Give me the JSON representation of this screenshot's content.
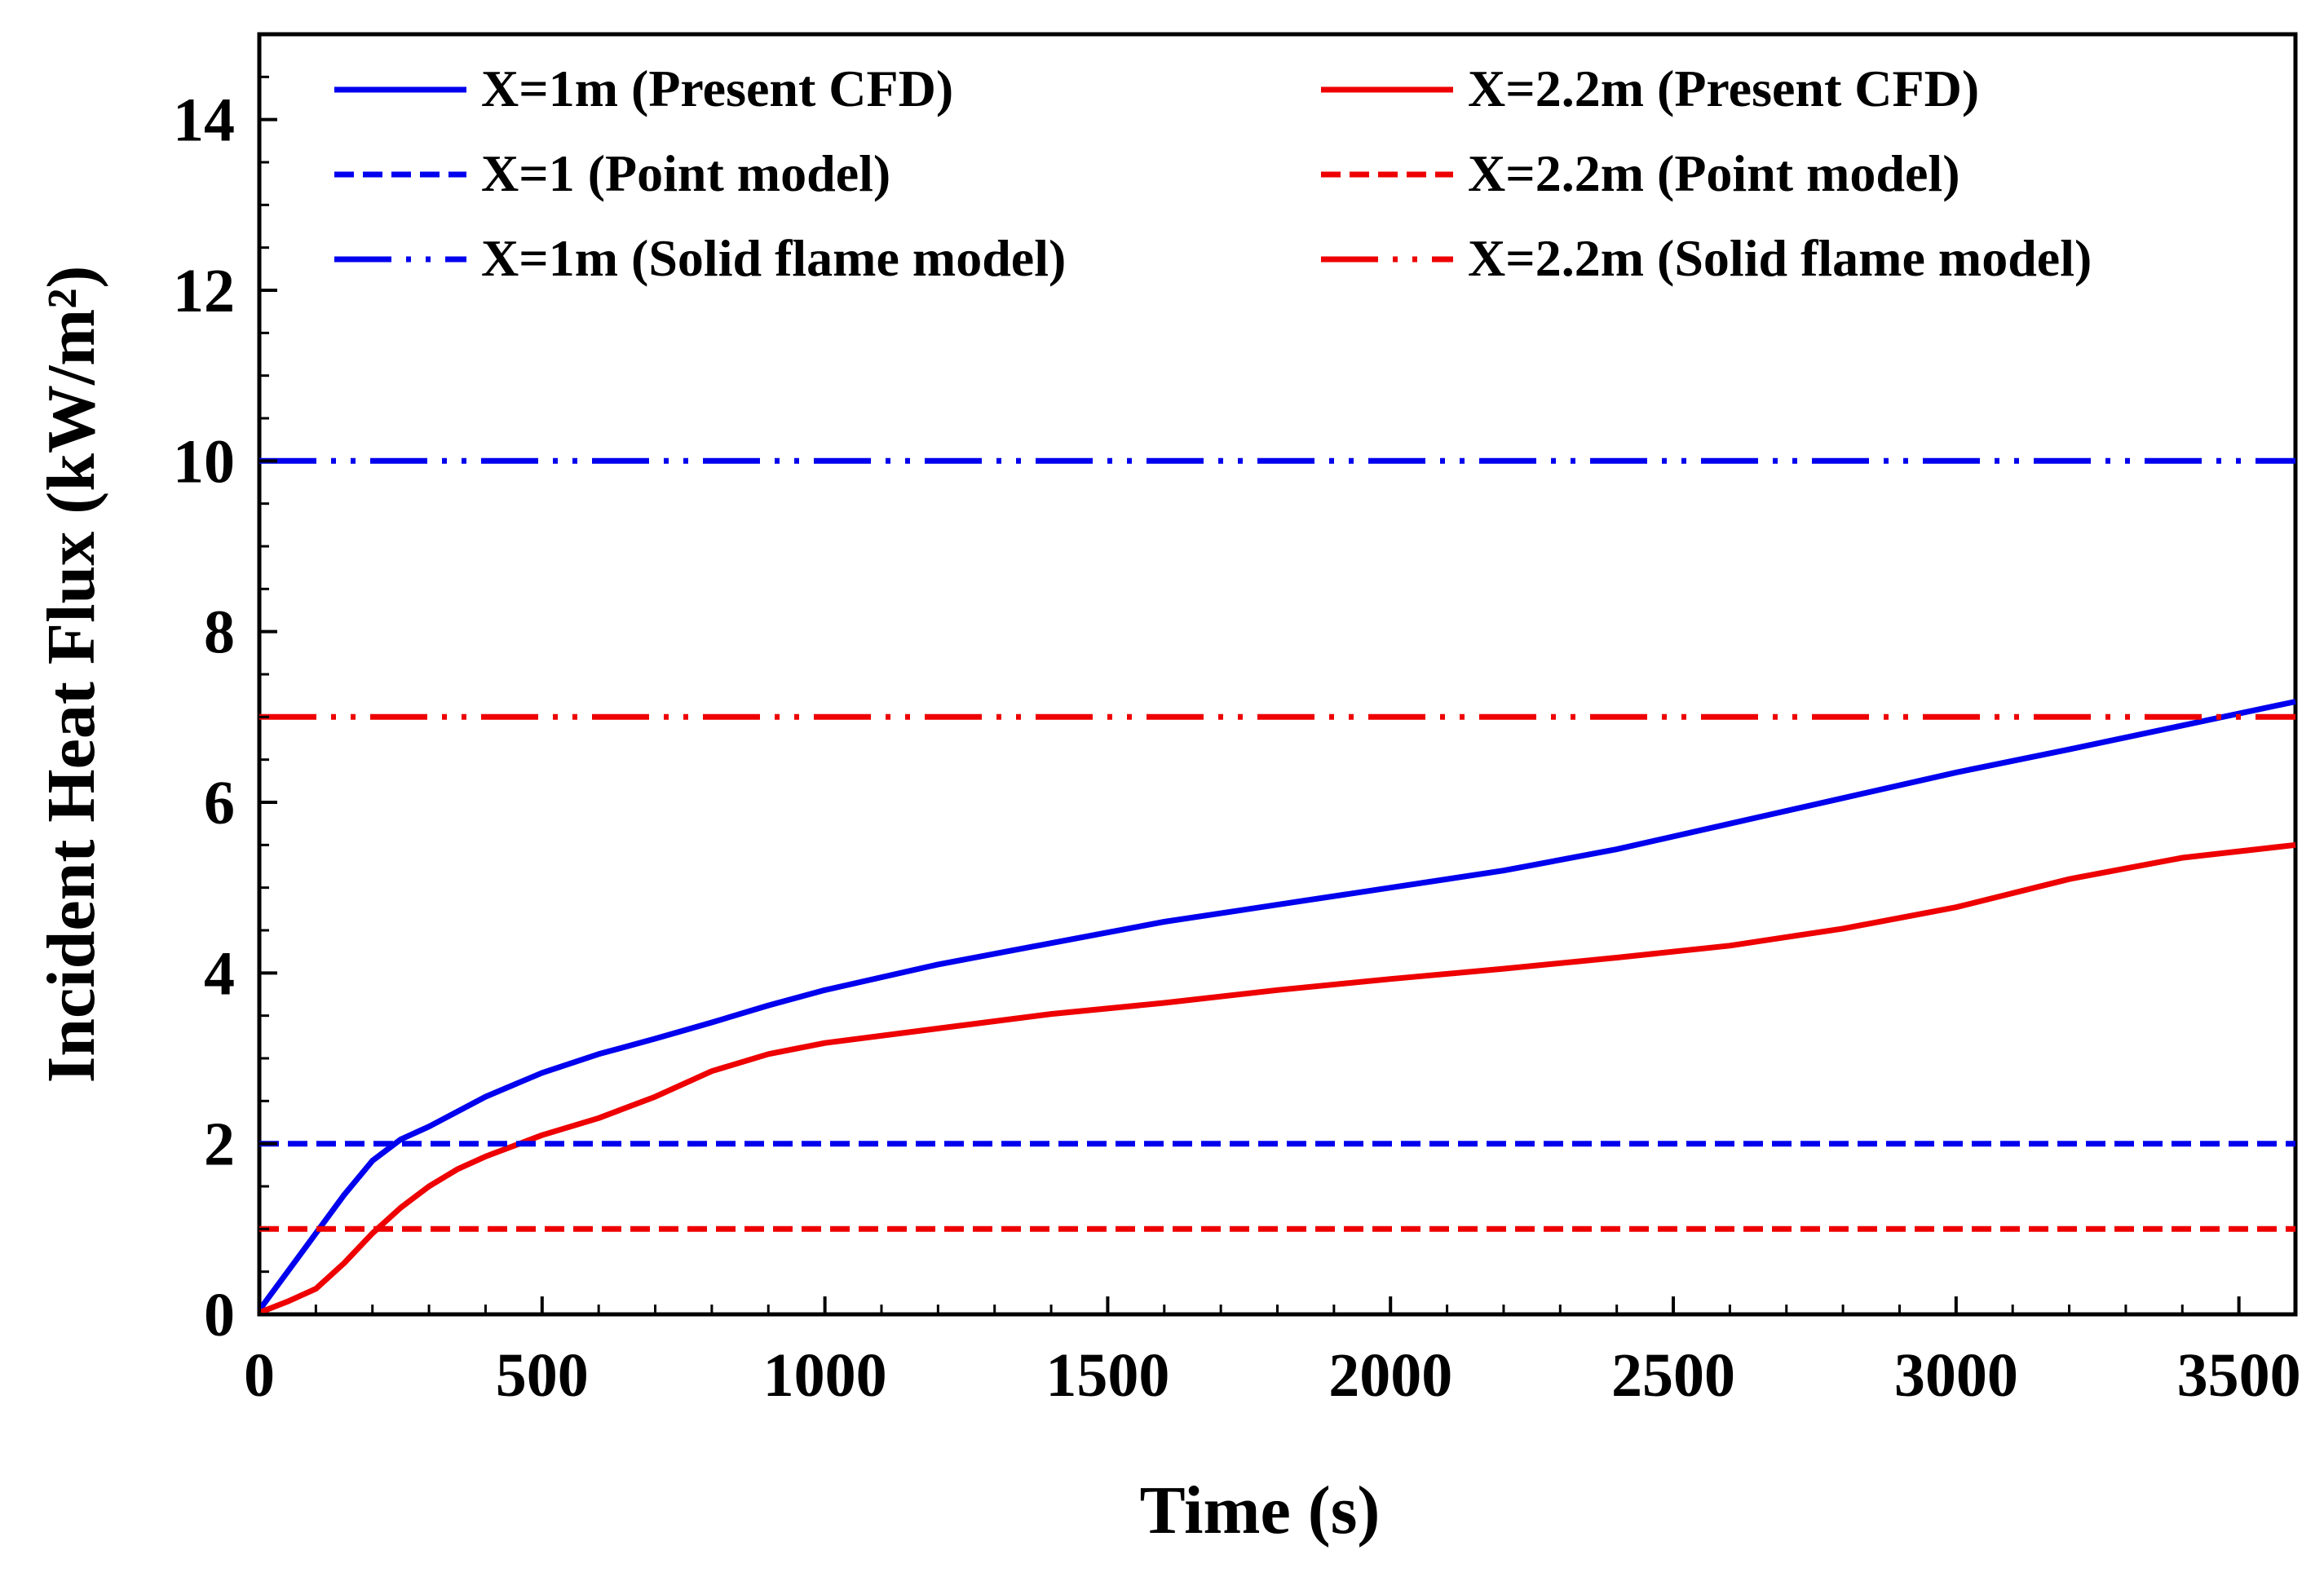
{
  "chart_data": {
    "type": "line",
    "title": "",
    "xlabel": "Time (s)",
    "ylabel": "Incident Heat Flux (kW/m²)",
    "xlim": [
      0,
      3600
    ],
    "ylim": [
      0,
      15
    ],
    "xticks": [
      0,
      500,
      1000,
      1500,
      2000,
      2500,
      3000,
      3500
    ],
    "yticks": [
      0,
      2,
      4,
      6,
      8,
      10,
      12,
      14
    ],
    "xtick_labels": [
      "0",
      "500",
      "1000",
      "1500",
      "2000",
      "2500",
      "3000",
      "3500"
    ],
    "ytick_labels": [
      "0",
      "2",
      "4",
      "6",
      "8",
      "10",
      "12",
      "14"
    ],
    "grid": false,
    "legend_position": "top",
    "series": [
      {
        "name": "X=1m (Present CFD)",
        "color": "#0000ee",
        "style": "solid",
        "x": [
          0,
          50,
          100,
          150,
          200,
          250,
          300,
          400,
          500,
          600,
          700,
          800,
          900,
          1000,
          1200,
          1400,
          1600,
          1800,
          2000,
          2200,
          2400,
          2600,
          2800,
          3000,
          3200,
          3400,
          3600
        ],
        "y": [
          0.05,
          0.5,
          0.95,
          1.4,
          1.8,
          2.05,
          2.2,
          2.55,
          2.83,
          3.05,
          3.23,
          3.42,
          3.62,
          3.8,
          4.1,
          4.35,
          4.6,
          4.8,
          5.0,
          5.2,
          5.45,
          5.75,
          6.05,
          6.35,
          6.62,
          6.9,
          7.18
        ]
      },
      {
        "name": "X=2.2m (Present CFD)",
        "color": "#ee0000",
        "style": "solid",
        "x": [
          0,
          50,
          100,
          150,
          200,
          250,
          300,
          350,
          400,
          500,
          600,
          700,
          800,
          900,
          1000,
          1200,
          1400,
          1600,
          1800,
          2000,
          2200,
          2400,
          2600,
          2800,
          3000,
          3200,
          3400,
          3600
        ],
        "y": [
          0.02,
          0.15,
          0.3,
          0.6,
          0.95,
          1.25,
          1.5,
          1.7,
          1.85,
          2.1,
          2.3,
          2.55,
          2.85,
          3.05,
          3.18,
          3.35,
          3.52,
          3.65,
          3.8,
          3.93,
          4.05,
          4.18,
          4.32,
          4.52,
          4.77,
          5.1,
          5.35,
          5.5
        ]
      },
      {
        "name": "X=1 (Point model)",
        "color": "#0000ee",
        "style": "dashed",
        "x": [
          0,
          3600
        ],
        "y": [
          2,
          2
        ]
      },
      {
        "name": "X=2.2m (Point model)",
        "color": "#ee0000",
        "style": "dashed",
        "x": [
          0,
          3600
        ],
        "y": [
          1,
          1
        ]
      },
      {
        "name": "X=1m (Solid flame model)",
        "color": "#0000ee",
        "style": "dash-dot-dot",
        "x": [
          0,
          3600
        ],
        "y": [
          10,
          10
        ]
      },
      {
        "name": "X=2.2m (Solid flame model)",
        "color": "#ee0000",
        "style": "dash-dot-dot",
        "x": [
          0,
          3600
        ],
        "y": [
          7,
          7
        ]
      }
    ],
    "legend": {
      "column1": [
        "X=1m (Present CFD)",
        "X=1 (Point model)",
        "X=1m (Solid flame model)"
      ],
      "column2": [
        "X=2.2m (Present CFD)",
        "X=2.2m (Point model)",
        "X=2.2m (Solid flame model)"
      ]
    }
  }
}
